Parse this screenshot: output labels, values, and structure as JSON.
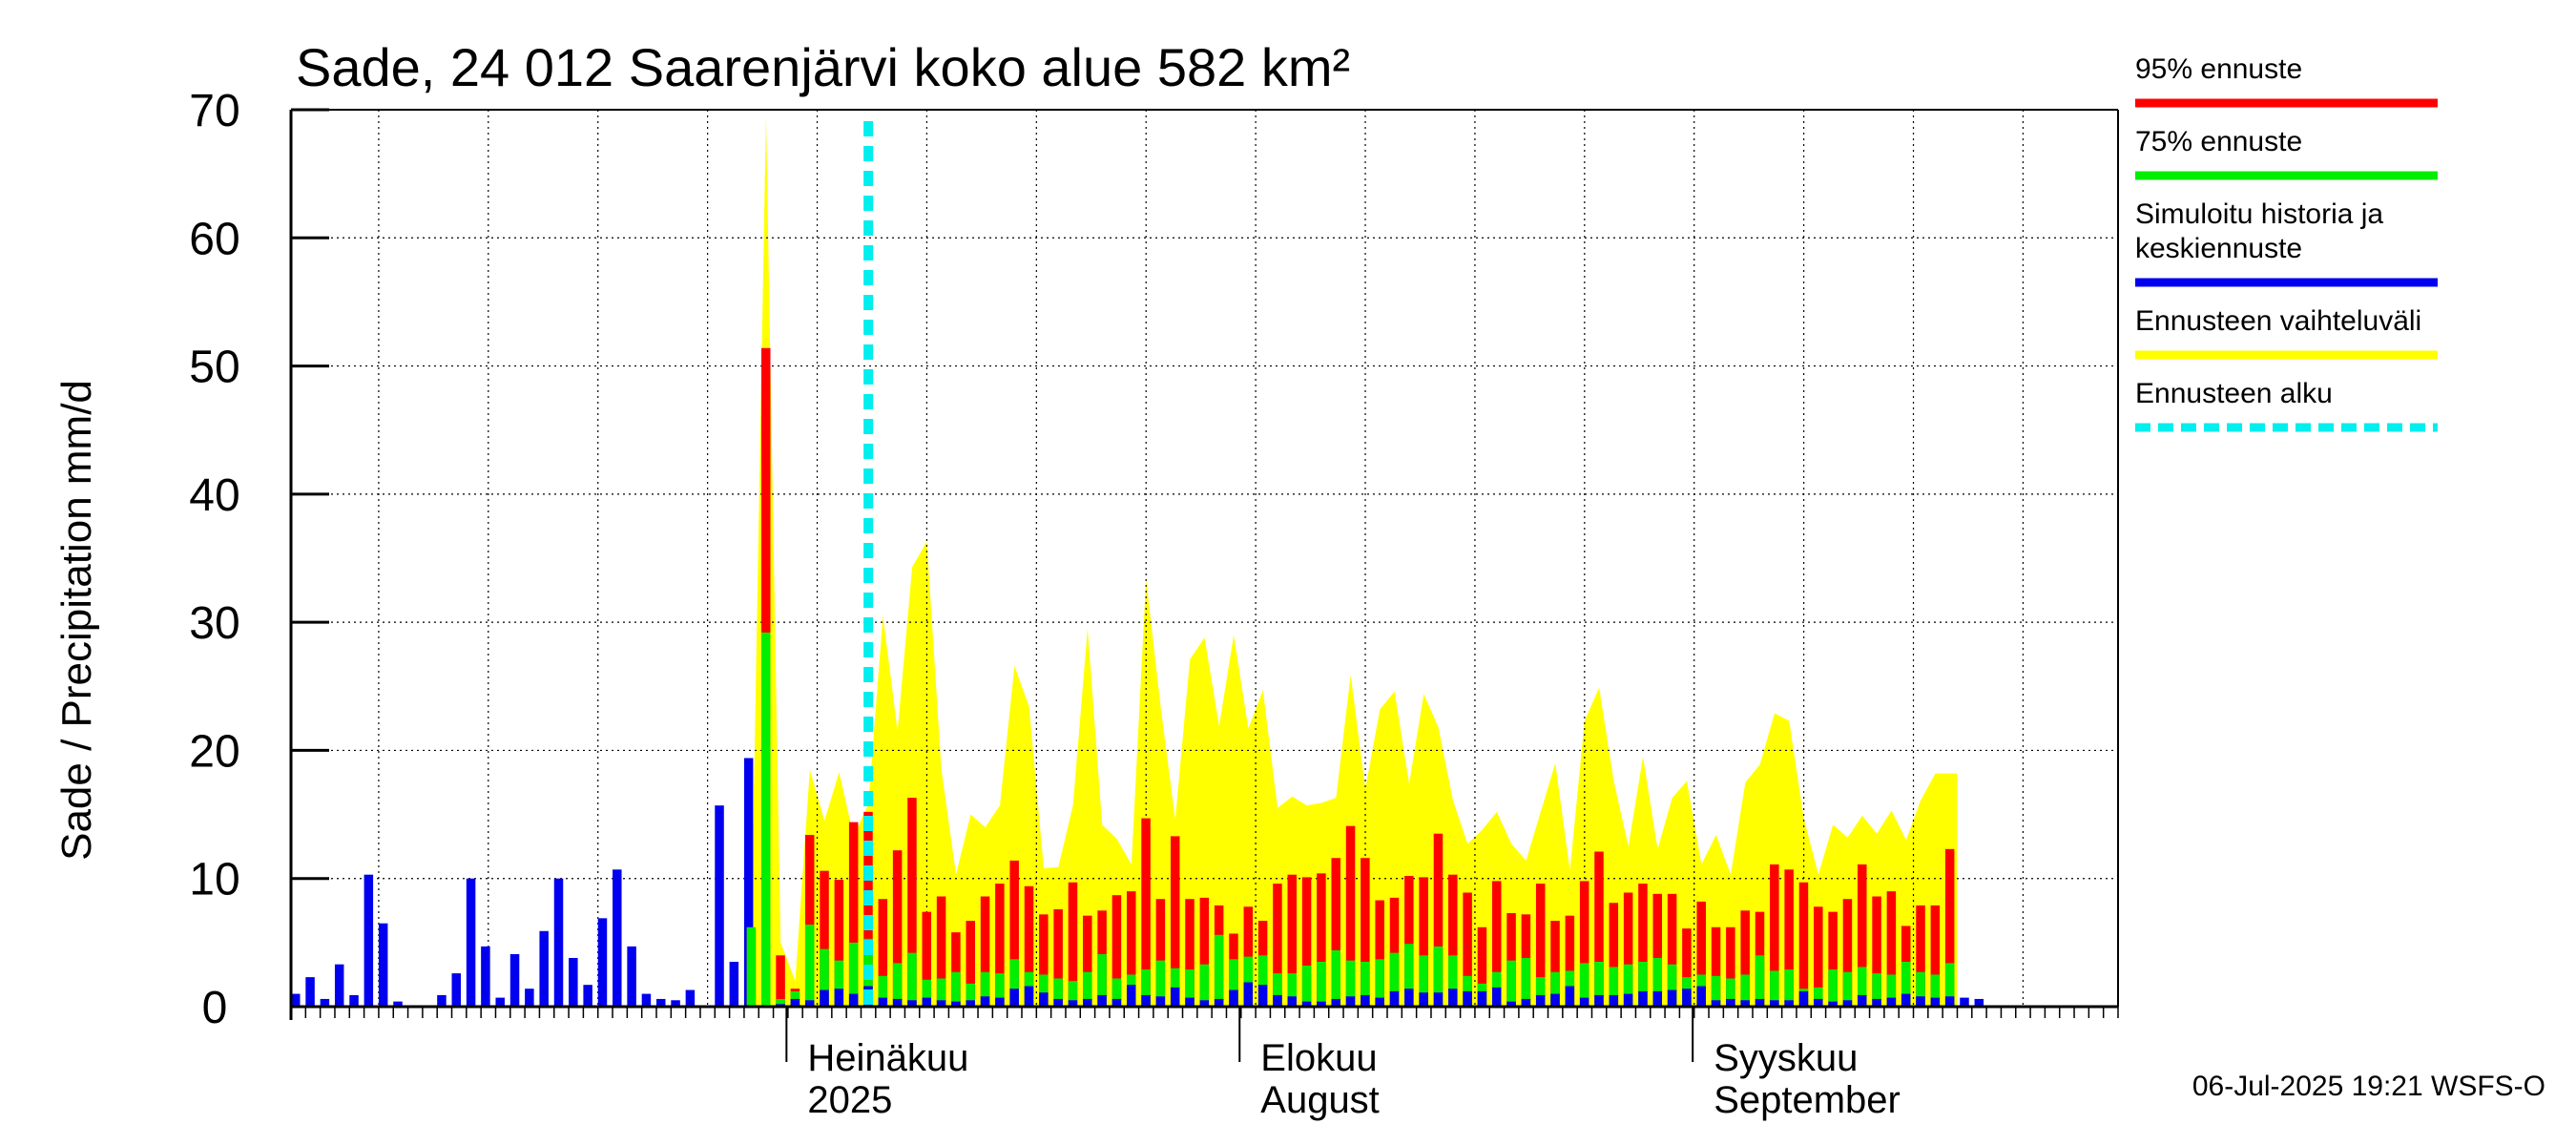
{
  "chart_data": {
    "type": "bar",
    "title": "Sade, 24 012 Saarenjärvi koko alue 582 km²",
    "ylabel": "Sade / Precipitation   mm/d",
    "ylim": [
      0,
      70
    ],
    "yticks": [
      "0",
      "10",
      "20",
      "30",
      "40",
      "50",
      "60",
      "70"
    ],
    "x_unit": "day index (day 0 = 2025-05-28)",
    "xlim": [
      0,
      125
    ],
    "month_labels": [
      {
        "day": 34,
        "line1": "Heinäkuu",
        "line2": "2025"
      },
      {
        "day": 65,
        "line1": "Elokuu",
        "line2": "August"
      },
      {
        "day": 96,
        "line1": "Syyskuu",
        "line2": "September"
      }
    ],
    "forecast_start_day": 39.5,
    "history": [
      1.0,
      2.3,
      0.6,
      3.3,
      0.9,
      10.3,
      6.5,
      0.4,
      0.0,
      0.0,
      0.9,
      2.6,
      10.0,
      4.7,
      0.7,
      4.1,
      1.4,
      5.9,
      10.0,
      3.8,
      1.7,
      6.9,
      10.7,
      4.7,
      1.0,
      0.6,
      0.5,
      1.3,
      0.0,
      15.7,
      3.5,
      19.4
    ],
    "history_start_day": 0,
    "forecast_start_index_day": 32,
    "sim_median": [
      0.2,
      0.6,
      0.5,
      1.3,
      1.4,
      1.0,
      1.6,
      0.7,
      0.6,
      0.5,
      0.7,
      0.5,
      0.4,
      0.5,
      0.8,
      0.7,
      1.4,
      1.6,
      1.1,
      0.6,
      0.5,
      0.6,
      0.9,
      0.6,
      1.7,
      0.9,
      0.8,
      1.5,
      0.7,
      0.5,
      0.6,
      1.3,
      1.9,
      1.7,
      0.9,
      0.8,
      0.4,
      0.4,
      0.6,
      0.8,
      0.9,
      0.7,
      1.2,
      1.4,
      1.1,
      1.1,
      1.4,
      1.2,
      1.2,
      1.5,
      0.4,
      0.6,
      0.9,
      1.0,
      1.6,
      0.7,
      0.9,
      0.9,
      1.0,
      1.2,
      1.2,
      1.3,
      1.4,
      1.6,
      0.5,
      0.6,
      0.5,
      0.6,
      0.5,
      0.5,
      1.2,
      0.6,
      0.4,
      0.5,
      0.9,
      0.6,
      0.7,
      1.0,
      0.8,
      0.7,
      0.8,
      0.7,
      0.6
    ],
    "p75": [
      6.2,
      29.2,
      0.6,
      1.2,
      6.4,
      4.5,
      3.6,
      5.0,
      5.3,
      2.4,
      3.4,
      4.2,
      2.1,
      2.2,
      2.7,
      1.8,
      2.7,
      2.6,
      3.7,
      2.7,
      2.5,
      2.2,
      2.0,
      2.7,
      4.1,
      2.2,
      2.5,
      2.9,
      3.6,
      3.0,
      2.9,
      3.3,
      5.6,
      3.7,
      3.9,
      4.0,
      2.6,
      2.6,
      3.2,
      3.5,
      4.4,
      3.6,
      3.5,
      3.7,
      4.2,
      4.9,
      4.0,
      4.7,
      4.0,
      2.4,
      1.8,
      2.7,
      3.6,
      3.8,
      2.3,
      2.7,
      2.8,
      3.4,
      3.5,
      3.1,
      3.3,
      3.5,
      3.8,
      3.3,
      2.3,
      2.5,
      2.4,
      2.2,
      2.5,
      4.0,
      2.8,
      2.9,
      1.4,
      1.5,
      2.9,
      2.7,
      3.1,
      2.6,
      2.5,
      3.5,
      2.7,
      2.5,
      3.4
    ],
    "p95": [
      6.0,
      51.4,
      4.0,
      1.4,
      13.4,
      10.6,
      9.9,
      14.4,
      15.2,
      8.4,
      12.2,
      16.3,
      7.4,
      8.6,
      5.8,
      6.7,
      8.6,
      9.6,
      11.4,
      9.4,
      7.2,
      7.6,
      9.7,
      7.1,
      7.5,
      8.7,
      9.0,
      14.7,
      8.4,
      13.3,
      8.4,
      8.5,
      7.9,
      5.7,
      7.8,
      6.7,
      9.6,
      10.3,
      10.1,
      10.4,
      11.6,
      14.1,
      11.6,
      8.3,
      8.5,
      10.2,
      10.1,
      13.5,
      10.3,
      8.9,
      6.2,
      9.8,
      7.3,
      7.2,
      9.6,
      6.7,
      7.1,
      9.8,
      12.1,
      8.1,
      8.9,
      9.6,
      8.8,
      8.8,
      6.1,
      8.2,
      6.2,
      6.2,
      7.5,
      7.4,
      11.1,
      10.7,
      9.7,
      7.8,
      7.4,
      8.4,
      11.1,
      8.6,
      9.0,
      6.3,
      7.9,
      7.9,
      12.3
    ],
    "forecast_first_day": 31,
    "band_top": [
      6.0,
      69.5,
      5.0,
      2.0,
      18.5,
      14.5,
      18.3,
      13.3,
      15.8,
      30.5,
      21.5,
      34.3,
      36.3,
      18.5,
      10.3,
      15.0,
      14.0,
      15.7,
      26.6,
      23.4,
      10.8,
      10.9,
      15.7,
      29.5,
      14.2,
      13.1,
      11.1,
      33.4,
      23.4,
      14.6,
      27.1,
      28.8,
      21.9,
      29.0,
      21.7,
      24.7,
      15.5,
      16.4,
      15.7,
      15.9,
      16.3,
      25.9,
      17.0,
      23.2,
      24.6,
      17.4,
      24.4,
      21.8,
      16.1,
      12.7,
      13.8,
      15.2,
      12.7,
      11.4,
      15.2,
      19.0,
      10.6,
      22.3,
      24.9,
      17.6,
      12.5,
      19.5,
      12.3,
      16.3,
      17.6,
      11.1,
      13.4,
      10.3,
      17.5,
      18.9,
      22.9,
      22.3,
      14.7,
      10.3,
      14.2,
      13.2,
      14.9,
      13.5,
      15.3,
      13.0,
      16.1,
      18.2,
      18.2
    ],
    "legend": [
      {
        "label": "95% ennuste",
        "color": "#ff0000",
        "style": "solid"
      },
      {
        "label": "75% ennuste",
        "color": "#00ee00",
        "style": "solid"
      },
      {
        "label": "Simuloitu historia ja keskiennuste",
        "color": "#0000ee",
        "style": "solid"
      },
      {
        "label": "Ennusteen vaihteluväli",
        "color": "#ffff00",
        "style": "solid"
      },
      {
        "label": "Ennusteen alku",
        "color": "#00eeee",
        "style": "dashed"
      }
    ],
    "legend_placement": "right",
    "grid": true
  },
  "footer": "06-Jul-2025 19:21 WSFS-O",
  "colors": {
    "p95": "#ff0000",
    "p75": "#00ee00",
    "median": "#0000ee",
    "band": "#ffff00",
    "forecast_start": "#00eeee",
    "grid": "#000000"
  }
}
